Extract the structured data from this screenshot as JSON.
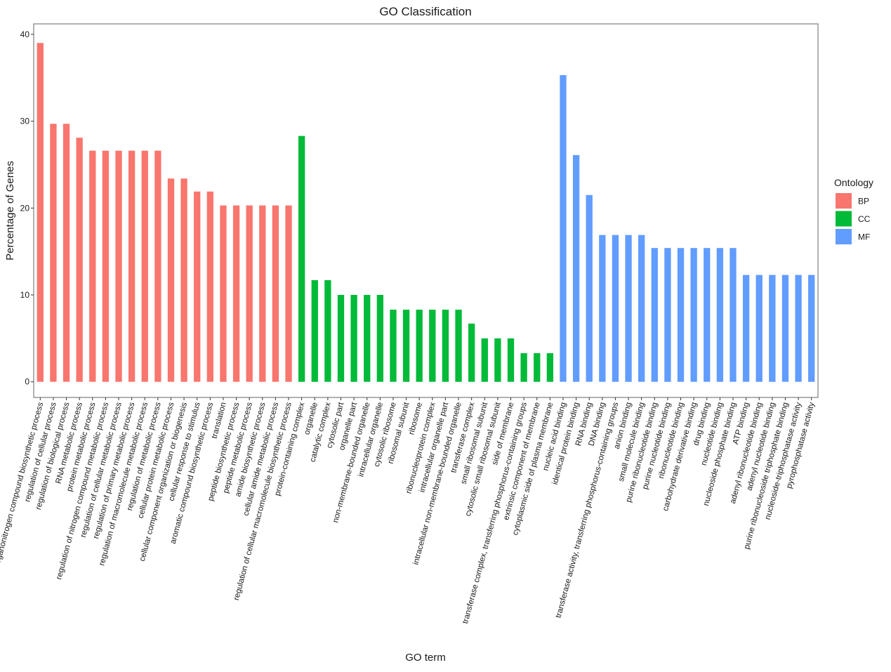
{
  "chart_data": {
    "type": "bar",
    "title": "GO Classification",
    "xlabel": "GO term",
    "ylabel": "Percentage of Genes",
    "ylim": [
      -1.8,
      41.2
    ],
    "yticks": [
      0,
      10,
      20,
      30,
      40
    ],
    "grid": false,
    "legend": {
      "title": "Ontology",
      "position": "right",
      "entries": [
        "BP",
        "CC",
        "MF"
      ]
    },
    "colors": {
      "BP": "#F8766D",
      "CC": "#00BA38",
      "MF": "#619CFF"
    },
    "categories": [
      "organonitrogen compound biosynthetic process",
      "regulation of cellular process",
      "regulation of biological process",
      "RNA metabolic process",
      "protein metabolic process",
      "regulation of nitrogen compound metabolic process",
      "regulation of cellular metabolic process",
      "regulation of primary metabolic process",
      "regulation of macromolecule metabolic process",
      "regulation of metabolic process",
      "cellular protein metabolic process",
      "cellular component organization or biogenesis",
      "cellular response to stimulus",
      "aromatic compound biosynthetic process",
      "translation",
      "peptide biosynthetic process",
      "peptide metabolic process",
      "amide biosynthetic process",
      "cellular amide metabolic process",
      "regulation of cellular macromolecule biosynthetic process",
      "protein-containing complex",
      "organelle",
      "catalytic complex",
      "cytosolic part",
      "organelle part",
      "non-membrane-bounded organelle",
      "intracellular organelle",
      "cytosolic ribosome",
      "ribosomal subunit",
      "ribosome",
      "ribonucleoprotein complex",
      "intracellular organelle part",
      "intracellular non-membrane-bounded organelle",
      "transferase complex",
      "small ribosomal subunit",
      "cytosolic small ribosomal subunit",
      "side of membrane",
      "transferase complex, transferring phosphorus-containing groups",
      "extrinsic component of membrane",
      "cytoplasmic side of plasma membrane",
      "nucleic acid binding",
      "identical protein binding",
      "RNA binding",
      "DNA binding",
      "transferase activity, transferring phosphorus-containing groups",
      "anion binding",
      "small molecule binding",
      "purine ribonucleotide binding",
      "purine nucleotide binding",
      "ribonucleotide binding",
      "carbohydrate derivative binding",
      "drug binding",
      "nucleotide binding",
      "nucleoside phosphate binding",
      "ATP binding",
      "adenyl ribonucleotide binding",
      "adenyl nucleotide binding",
      "purine ribonucleoside triphosphate binding",
      "nucleoside-triphosphatase activity",
      "pyrophosphatase activity"
    ],
    "ontology": [
      "BP",
      "BP",
      "BP",
      "BP",
      "BP",
      "BP",
      "BP",
      "BP",
      "BP",
      "BP",
      "BP",
      "BP",
      "BP",
      "BP",
      "BP",
      "BP",
      "BP",
      "BP",
      "BP",
      "BP",
      "CC",
      "CC",
      "CC",
      "CC",
      "CC",
      "CC",
      "CC",
      "CC",
      "CC",
      "CC",
      "CC",
      "CC",
      "CC",
      "CC",
      "CC",
      "CC",
      "CC",
      "CC",
      "CC",
      "CC",
      "MF",
      "MF",
      "MF",
      "MF",
      "MF",
      "MF",
      "MF",
      "MF",
      "MF",
      "MF",
      "MF",
      "MF",
      "MF",
      "MF",
      "MF",
      "MF",
      "MF",
      "MF",
      "MF",
      "MF"
    ],
    "values": [
      39.0,
      29.7,
      29.7,
      28.1,
      26.6,
      26.6,
      26.6,
      26.6,
      26.6,
      26.6,
      23.4,
      23.4,
      21.9,
      21.9,
      20.3,
      20.3,
      20.3,
      20.3,
      20.3,
      20.3,
      28.3,
      11.7,
      11.7,
      10.0,
      10.0,
      10.0,
      10.0,
      8.3,
      8.3,
      8.3,
      8.3,
      8.3,
      8.3,
      6.7,
      5.0,
      5.0,
      5.0,
      3.3,
      3.3,
      3.3,
      35.3,
      26.1,
      21.5,
      16.9,
      16.9,
      16.9,
      16.9,
      15.4,
      15.4,
      15.4,
      15.4,
      15.4,
      15.4,
      15.4,
      12.3,
      12.3,
      12.3,
      12.3,
      12.3,
      12.3
    ]
  }
}
